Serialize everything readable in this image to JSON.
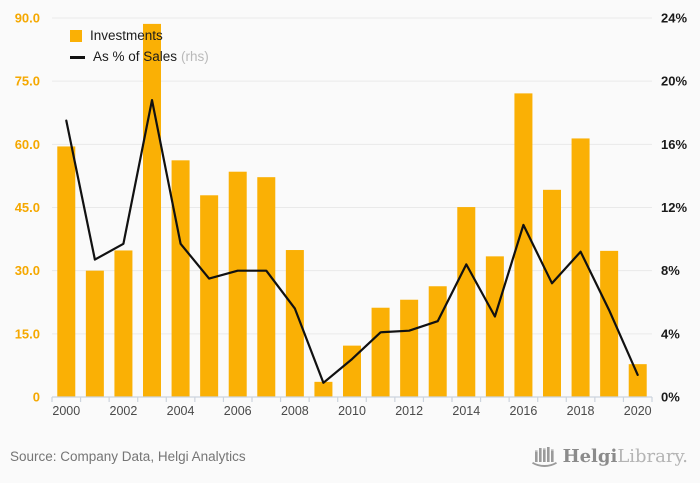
{
  "chart_data": {
    "type": "bar-line-combo",
    "categories": [
      "2000",
      "2001",
      "2002",
      "2003",
      "2004",
      "2005",
      "2006",
      "2007",
      "2008",
      "2009",
      "2010",
      "2011",
      "2012",
      "2013",
      "2014",
      "2015",
      "2016",
      "2017",
      "2018",
      "2019",
      "2020"
    ],
    "series": [
      {
        "name": "Investments",
        "type": "bar",
        "axis": "left",
        "values": [
          59.5,
          30.0,
          34.8,
          88.6,
          56.2,
          47.9,
          53.5,
          52.2,
          34.9,
          3.6,
          12.2,
          21.2,
          23.1,
          26.3,
          45.1,
          33.4,
          72.1,
          49.2,
          61.4,
          34.7,
          7.8
        ]
      },
      {
        "name": "As % of Sales",
        "type": "line",
        "axis": "right",
        "values": [
          17.5,
          8.7,
          9.7,
          18.8,
          9.7,
          7.5,
          8.0,
          8.0,
          5.6,
          0.9,
          2.4,
          4.1,
          4.2,
          4.8,
          8.4,
          5.1,
          10.9,
          7.2,
          9.2,
          5.5,
          1.4
        ]
      }
    ],
    "left_axis": {
      "min": 0,
      "max": 90,
      "tick_values": [
        0,
        15,
        30,
        45,
        60,
        75,
        90
      ],
      "tick_labels": [
        "0",
        "15.0",
        "30.0",
        "45.0",
        "60.0",
        "75.0",
        "90.0"
      ]
    },
    "right_axis": {
      "min": 0,
      "max": 24,
      "tick_values": [
        0,
        4,
        8,
        12,
        16,
        20,
        24
      ],
      "tick_labels": [
        "0%",
        "4%",
        "8%",
        "12%",
        "16%",
        "20%",
        "24%"
      ]
    },
    "x_label_step": 2,
    "grid": true,
    "legend_position": "top-left"
  },
  "legend": {
    "investments_label": "Investments",
    "sales_label": "As % of Sales",
    "sales_suffix": "(rhs)"
  },
  "footer": {
    "source": "Source: Company Data, Helgi Analytics",
    "logo_bold": "Helgi",
    "logo_light": "Library."
  },
  "colors": {
    "bar": "#FAB005",
    "line": "#111111",
    "left_axis_label": "#F5A800",
    "right_axis_label": "#1a1a1a",
    "x_label": "#4a4a4a",
    "grid": "#e9e9e9",
    "axis": "#ccd3dd",
    "background": "#fafafa"
  }
}
